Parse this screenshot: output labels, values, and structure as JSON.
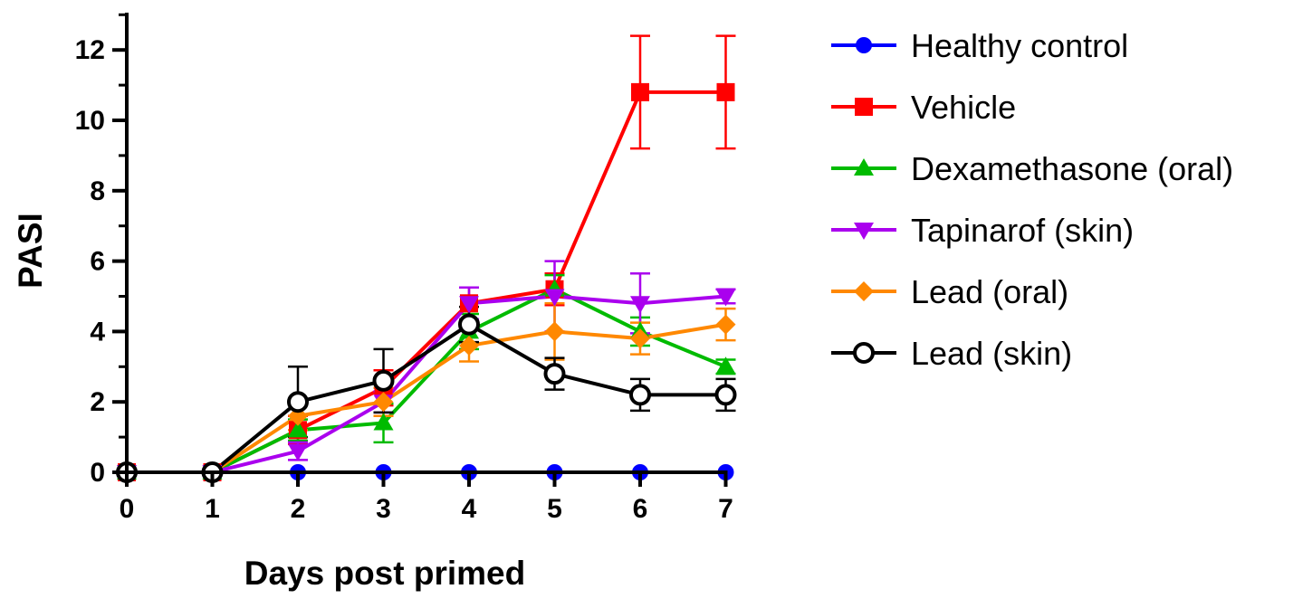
{
  "chart_data": {
    "type": "line",
    "title": "",
    "xlabel": "Days post primed",
    "ylabel": "PASI",
    "xlim": [
      0,
      7
    ],
    "ylim": [
      0,
      13
    ],
    "xticks": [
      0,
      1,
      2,
      3,
      4,
      5,
      6,
      7
    ],
    "yticks": [
      0,
      2,
      4,
      6,
      8,
      10,
      12
    ],
    "grid": false,
    "legend_position": "right",
    "x": [
      0,
      1,
      2,
      3,
      4,
      5,
      6,
      7
    ],
    "series": [
      {
        "name": "Healthy control",
        "color": "#0000ff",
        "marker": "circle-filled",
        "values": [
          0,
          0,
          0,
          0,
          0,
          0,
          0,
          0
        ],
        "error": [
          0,
          0,
          0,
          0,
          0,
          0,
          0,
          0
        ]
      },
      {
        "name": "Vehicle",
        "color": "#ff0000",
        "marker": "square-filled",
        "values": [
          0,
          0,
          1.2,
          2.4,
          4.8,
          5.2,
          10.8,
          10.8
        ],
        "error": [
          0,
          0,
          0.4,
          0.5,
          0.45,
          0.45,
          1.6,
          1.6
        ]
      },
      {
        "name": "Dexamethasone (oral)",
        "color": "#00bb00",
        "marker": "triangle-up",
        "values": [
          0,
          0,
          1.2,
          1.4,
          4.0,
          5.2,
          4.0,
          3.0
        ],
        "error": [
          0,
          0,
          0.3,
          0.55,
          0.5,
          0.4,
          0.4,
          0.2
        ]
      },
      {
        "name": "Tapinarof (skin)",
        "color": "#aa00ee",
        "marker": "triangle-down",
        "values": [
          0,
          0,
          0.6,
          2.0,
          4.8,
          5.0,
          4.8,
          5.0
        ],
        "error": [
          0,
          0,
          0.25,
          0.3,
          0.45,
          1.0,
          0.85,
          0.2
        ]
      },
      {
        "name": "Lead (oral)",
        "color": "#ff8800",
        "marker": "diamond-filled",
        "values": [
          0,
          0,
          1.6,
          2.0,
          3.6,
          4.0,
          3.8,
          4.2
        ],
        "error": [
          0,
          0,
          0.4,
          0.4,
          0.45,
          0.8,
          0.45,
          0.45
        ]
      },
      {
        "name": "Lead (skin)",
        "color": "#000000",
        "marker": "circle-open",
        "values": [
          0,
          0,
          2.0,
          2.6,
          4.2,
          2.8,
          2.2,
          2.2
        ],
        "error": [
          0,
          0,
          1.0,
          0.9,
          0.5,
          0.45,
          0.45,
          0.45
        ]
      }
    ]
  }
}
